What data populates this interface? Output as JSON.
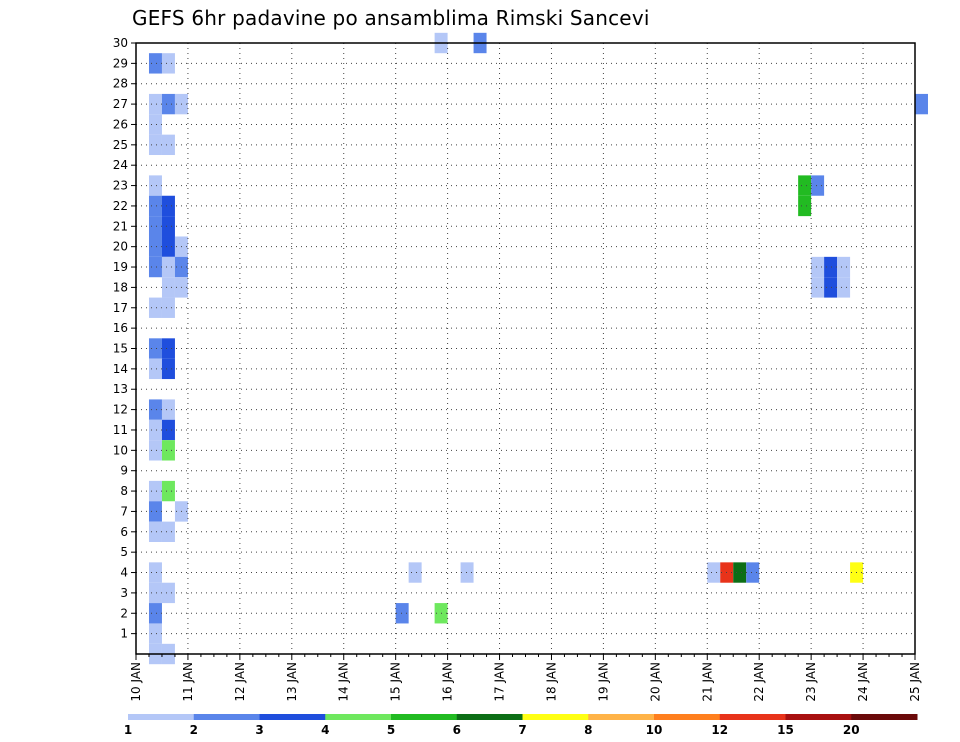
{
  "chart_data": {
    "type": "heatmap",
    "title": "GEFS 6hr padavine po ansamblima Rimski Sancevi",
    "xlabel": "",
    "ylabel": "",
    "x_tick_labels": [
      "10 JAN",
      "11 JAN",
      "12 JAN",
      "13 JAN",
      "14 JAN",
      "15 JAN",
      "16 JAN",
      "17 JAN",
      "18 JAN",
      "19 JAN",
      "20 JAN",
      "21 JAN",
      "22 JAN",
      "23 JAN",
      "24 JAN",
      "25 JAN"
    ],
    "y_tick_labels": [
      "1",
      "2",
      "3",
      "4",
      "5",
      "6",
      "7",
      "8",
      "9",
      "10",
      "11",
      "12",
      "13",
      "14",
      "15",
      "16",
      "17",
      "18",
      "19",
      "20",
      "21",
      "22",
      "23",
      "24",
      "25",
      "26",
      "27",
      "28",
      "29",
      "30"
    ],
    "xlim": [
      "10 JAN",
      "25 JAN"
    ],
    "ylim": [
      0.5,
      30.5
    ],
    "grid": true,
    "time_step_hours": 6,
    "colorbar": {
      "labels": [
        "1",
        "2",
        "3",
        "4",
        "5",
        "6",
        "7",
        "8",
        "10",
        "12",
        "15",
        "20"
      ],
      "colors": [
        "#b4c7f7",
        "#5a85ea",
        "#1f4edd",
        "#6ee85e",
        "#22bb22",
        "#0d6e16",
        "#ffff14",
        "#ffb347",
        "#ff7f1e",
        "#e8331a",
        "#a81010",
        "#6b0a0a"
      ]
    },
    "cells": [
      {
        "member": 30,
        "time": "15 JAN 18z",
        "bin": 1
      },
      {
        "member": 30,
        "time": "16 JAN 12z",
        "bin": 2
      },
      {
        "member": 29,
        "time": "10 JAN 06z",
        "bin": 2
      },
      {
        "member": 29,
        "time": "10 JAN 12z",
        "bin": 1
      },
      {
        "member": 27,
        "time": "10 JAN 06z",
        "bin": 1
      },
      {
        "member": 27,
        "time": "10 JAN 12z",
        "bin": 2
      },
      {
        "member": 27,
        "time": "10 JAN 18z",
        "bin": 1
      },
      {
        "member": 27,
        "time": "25 JAN 00z",
        "bin": 2
      },
      {
        "member": 26,
        "time": "10 JAN 06z",
        "bin": 1
      },
      {
        "member": 25,
        "time": "10 JAN 06z",
        "bin": 1
      },
      {
        "member": 25,
        "time": "10 JAN 12z",
        "bin": 1
      },
      {
        "member": 23,
        "time": "10 JAN 06z",
        "bin": 1
      },
      {
        "member": 23,
        "time": "22 JAN 18z",
        "bin": 5
      },
      {
        "member": 23,
        "time": "23 JAN 00z",
        "bin": 2
      },
      {
        "member": 22,
        "time": "10 JAN 06z",
        "bin": 2
      },
      {
        "member": 22,
        "time": "10 JAN 12z",
        "bin": 3
      },
      {
        "member": 22,
        "time": "22 JAN 18z",
        "bin": 5
      },
      {
        "member": 21,
        "time": "10 JAN 06z",
        "bin": 2
      },
      {
        "member": 21,
        "time": "10 JAN 12z",
        "bin": 3
      },
      {
        "member": 20,
        "time": "10 JAN 06z",
        "bin": 2
      },
      {
        "member": 20,
        "time": "10 JAN 12z",
        "bin": 3
      },
      {
        "member": 20,
        "time": "10 JAN 18z",
        "bin": 1
      },
      {
        "member": 19,
        "time": "10 JAN 06z",
        "bin": 2
      },
      {
        "member": 19,
        "time": "10 JAN 12z",
        "bin": 1
      },
      {
        "member": 19,
        "time": "10 JAN 18z",
        "bin": 2
      },
      {
        "member": 19,
        "time": "23 JAN 00z",
        "bin": 1
      },
      {
        "member": 19,
        "time": "23 JAN 06z",
        "bin": 3
      },
      {
        "member": 19,
        "time": "23 JAN 12z",
        "bin": 1
      },
      {
        "member": 18,
        "time": "10 JAN 12z",
        "bin": 1
      },
      {
        "member": 18,
        "time": "10 JAN 18z",
        "bin": 1
      },
      {
        "member": 18,
        "time": "23 JAN 00z",
        "bin": 1
      },
      {
        "member": 18,
        "time": "23 JAN 06z",
        "bin": 3
      },
      {
        "member": 18,
        "time": "23 JAN 12z",
        "bin": 1
      },
      {
        "member": 17,
        "time": "10 JAN 06z",
        "bin": 1
      },
      {
        "member": 17,
        "time": "10 JAN 12z",
        "bin": 1
      },
      {
        "member": 15,
        "time": "10 JAN 06z",
        "bin": 2
      },
      {
        "member": 15,
        "time": "10 JAN 12z",
        "bin": 3
      },
      {
        "member": 14,
        "time": "10 JAN 06z",
        "bin": 1
      },
      {
        "member": 14,
        "time": "10 JAN 12z",
        "bin": 3
      },
      {
        "member": 12,
        "time": "10 JAN 06z",
        "bin": 2
      },
      {
        "member": 12,
        "time": "10 JAN 12z",
        "bin": 1
      },
      {
        "member": 11,
        "time": "10 JAN 06z",
        "bin": 1
      },
      {
        "member": 11,
        "time": "10 JAN 12z",
        "bin": 3
      },
      {
        "member": 10,
        "time": "10 JAN 06z",
        "bin": 1
      },
      {
        "member": 10,
        "time": "10 JAN 12z",
        "bin": 4
      },
      {
        "member": 8,
        "time": "10 JAN 06z",
        "bin": 1
      },
      {
        "member": 8,
        "time": "10 JAN 12z",
        "bin": 4
      },
      {
        "member": 7,
        "time": "10 JAN 06z",
        "bin": 2
      },
      {
        "member": 7,
        "time": "10 JAN 18z",
        "bin": 1
      },
      {
        "member": 6,
        "time": "10 JAN 06z",
        "bin": 1
      },
      {
        "member": 6,
        "time": "10 JAN 12z",
        "bin": 1
      },
      {
        "member": 4,
        "time": "10 JAN 06z",
        "bin": 1
      },
      {
        "member": 4,
        "time": "15 JAN 06z",
        "bin": 1
      },
      {
        "member": 4,
        "time": "16 JAN 06z",
        "bin": 1
      },
      {
        "member": 4,
        "time": "21 JAN 00z",
        "bin": 1
      },
      {
        "member": 4,
        "time": "21 JAN 06z",
        "bin": 10
      },
      {
        "member": 4,
        "time": "21 JAN 12z",
        "bin": 6
      },
      {
        "member": 4,
        "time": "21 JAN 18z",
        "bin": 2
      },
      {
        "member": 4,
        "time": "23 JAN 18z",
        "bin": 7
      },
      {
        "member": 3,
        "time": "10 JAN 06z",
        "bin": 1
      },
      {
        "member": 3,
        "time": "10 JAN 12z",
        "bin": 1
      },
      {
        "member": 2,
        "time": "10 JAN 06z",
        "bin": 2
      },
      {
        "member": 2,
        "time": "15 JAN 00z",
        "bin": 2
      },
      {
        "member": 2,
        "time": "15 JAN 18z",
        "bin": 4
      },
      {
        "member": 1,
        "time": "10 JAN 06z",
        "bin": 1
      },
      {
        "member": 0,
        "time": "10 JAN 06z",
        "bin": 1
      },
      {
        "member": 0,
        "time": "10 JAN 12z",
        "bin": 1
      }
    ]
  }
}
